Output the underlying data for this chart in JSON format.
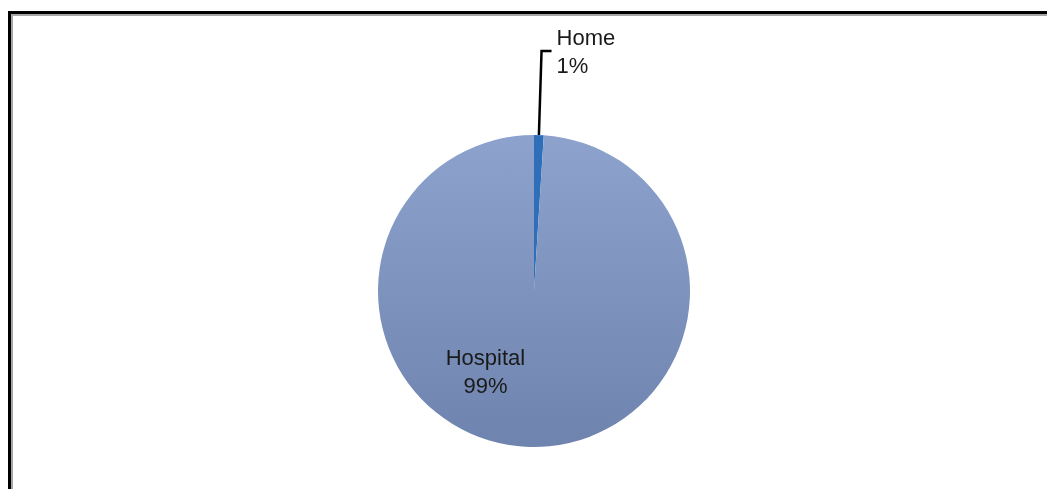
{
  "chart_data": {
    "type": "pie",
    "categories": [
      "Home",
      "Hospital"
    ],
    "values": [
      1,
      99
    ],
    "colors": [
      "#2f6fba",
      "#7d96c6"
    ],
    "value_labels": [
      "1%",
      "99%"
    ]
  }
}
